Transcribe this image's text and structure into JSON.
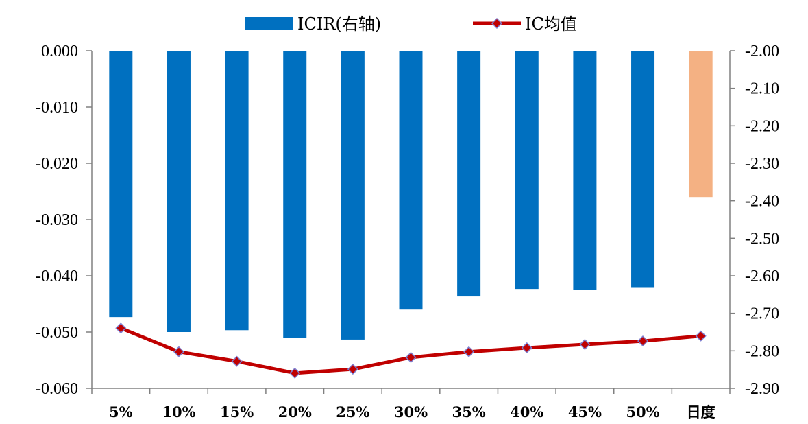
{
  "chart_data": {
    "type": "bar+line",
    "categories": [
      "5%",
      "10%",
      "15%",
      "20%",
      "25%",
      "30%",
      "35%",
      "40%",
      "45%",
      "50%",
      "日度"
    ],
    "legend": [
      {
        "label": "ICIR(右轴)",
        "kind": "bar"
      },
      {
        "label": "IC均值",
        "kind": "line"
      }
    ],
    "series": [
      {
        "name": "ICIR(右轴)",
        "type": "bar",
        "axis": "right",
        "values": [
          -2.71,
          -2.75,
          -2.745,
          -2.765,
          -2.77,
          -2.69,
          -2.655,
          -2.635,
          -2.638,
          -2.632,
          -2.39
        ],
        "color": "#0070C0",
        "highlight_last_color": "#F4B183"
      },
      {
        "name": "IC均值",
        "type": "line",
        "axis": "left",
        "values": [
          -0.0493,
          -0.0535,
          -0.0552,
          -0.0573,
          -0.0566,
          -0.0545,
          -0.0535,
          -0.0528,
          -0.0522,
          -0.0516,
          -0.0507
        ],
        "color": "#C00000",
        "marker_color": "#7F7FCF"
      }
    ],
    "left_axis": {
      "ylim": [
        -0.06,
        0.0
      ],
      "ticks": [
        "0.000",
        "-0.010",
        "-0.020",
        "-0.030",
        "-0.040",
        "-0.050",
        "-0.060"
      ]
    },
    "right_axis": {
      "ylim": [
        -2.9,
        -2.0
      ],
      "ticks": [
        "-2.00",
        "-2.10",
        "-2.20",
        "-2.30",
        "-2.40",
        "-2.50",
        "-2.60",
        "-2.70",
        "-2.80",
        "-2.90"
      ]
    },
    "grid": false,
    "legend_position": "top-center"
  }
}
